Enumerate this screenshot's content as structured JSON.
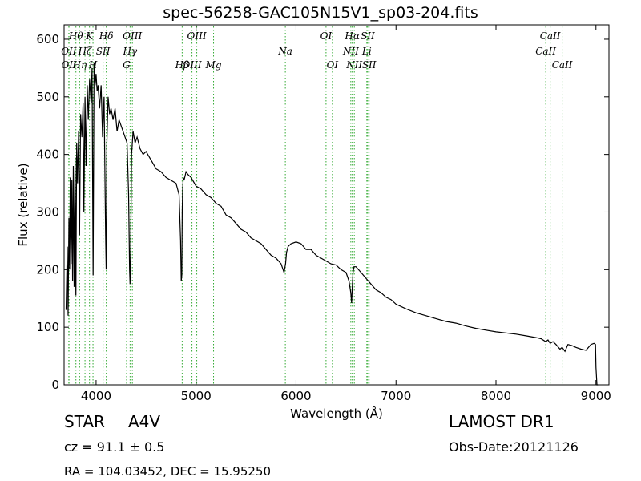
{
  "chart_data": {
    "type": "line",
    "title": "spec-56258-GAC105N15V1_sp03-204.fits",
    "xlabel": "Wavelength (Å)",
    "ylabel": "Flux (relative)",
    "xlim": [
      3680,
      9130
    ],
    "ylim": [
      0,
      625
    ],
    "xticks": [
      "4000",
      "5000",
      "6000",
      "7000",
      "8000",
      "9000"
    ],
    "yticks": [
      "0",
      "100",
      "200",
      "300",
      "400",
      "500",
      "600"
    ],
    "grid": false,
    "series": [
      {
        "x": [
          3700,
          3712,
          3720,
          3728,
          3735,
          3742,
          3750,
          3758,
          3765,
          3772,
          3780,
          3790,
          3798,
          3806,
          3815,
          3825,
          3835,
          3845,
          3858,
          3870,
          3878,
          3889,
          3900,
          3912,
          3922,
          3935,
          3950,
          3960,
          3970,
          3980,
          3990,
          4000,
          4010,
          4020,
          4035,
          4050,
          4065,
          4080,
          4095,
          4101,
          4108,
          4120,
          4135,
          4150,
          4170,
          4190,
          4210,
          4230,
          4250,
          4270,
          4290,
          4310,
          4325,
          4335,
          4340,
          4346,
          4355,
          4370,
          4390,
          4410,
          4440,
          4470,
          4500,
          4550,
          4600,
          4650,
          4700,
          4750,
          4800,
          4830,
          4845,
          4852,
          4857,
          4861,
          4866,
          4872,
          4880,
          4900,
          4920,
          4950,
          5000,
          5050,
          5100,
          5150,
          5200,
          5250,
          5300,
          5350,
          5400,
          5450,
          5500,
          5550,
          5600,
          5650,
          5700,
          5750,
          5800,
          5850,
          5880,
          5895,
          5905,
          5920,
          5950,
          6000,
          6050,
          6100,
          6150,
          6200,
          6250,
          6300,
          6350,
          6400,
          6450,
          6500,
          6530,
          6548,
          6556,
          6563,
          6570,
          6580,
          6600,
          6650,
          6700,
          6750,
          6800,
          6850,
          6900,
          6950,
          7000,
          7100,
          7200,
          7300,
          7400,
          7500,
          7600,
          7700,
          7800,
          7900,
          8000,
          8100,
          8200,
          8300,
          8400,
          8450,
          8498,
          8520,
          8542,
          8570,
          8600,
          8640,
          8662,
          8690,
          8720,
          8760,
          8800,
          8850,
          8900,
          8950,
          8980,
          8995,
          9000,
          9010,
          9020
        ],
        "y": [
          130,
          240,
          120,
          290,
          200,
          360,
          210,
          355,
          180,
          380,
          170,
          395,
          155,
          420,
          350,
          440,
          260,
          470,
          430,
          490,
          300,
          500,
          380,
          520,
          460,
          530,
          490,
          550,
          190,
          560,
          520,
          540,
          510,
          520,
          480,
          520,
          430,
          500,
          260,
          200,
          420,
          500,
          470,
          480,
          460,
          480,
          440,
          460,
          450,
          440,
          430,
          420,
          330,
          200,
          175,
          240,
          400,
          440,
          420,
          430,
          410,
          400,
          405,
          390,
          375,
          370,
          360,
          355,
          350,
          330,
          250,
          180,
          190,
          300,
          340,
          360,
          355,
          370,
          365,
          360,
          345,
          340,
          330,
          325,
          315,
          310,
          295,
          290,
          280,
          270,
          265,
          255,
          250,
          245,
          235,
          225,
          220,
          210,
          195,
          210,
          230,
          240,
          245,
          248,
          245,
          235,
          235,
          225,
          220,
          215,
          210,
          208,
          200,
          195,
          180,
          160,
          142,
          170,
          195,
          205,
          205,
          195,
          185,
          175,
          165,
          160,
          152,
          148,
          140,
          132,
          125,
          120,
          115,
          110,
          107,
          102,
          98,
          95,
          92,
          90,
          88,
          85,
          82,
          80,
          75,
          78,
          72,
          75,
          70,
          62,
          65,
          58,
          70,
          68,
          65,
          62,
          60,
          70,
          72,
          70,
          30,
          0,
          0
        ]
      }
    ],
    "emission_lines": [
      {
        "label": "OII",
        "x": 3727,
        "row": 2
      },
      {
        "label": "OII",
        "x": 3729,
        "row": 3
      },
      {
        "label": "Hθ",
        "x": 3798,
        "row": 1
      },
      {
        "label": "Hη",
        "x": 3835,
        "row": 3
      },
      {
        "label": "Hζ",
        "x": 3889,
        "row": 2
      },
      {
        "label": "K",
        "x": 3934,
        "row": 1
      },
      {
        "label": "H",
        "x": 3969,
        "row": 3
      },
      {
        "label": "SII",
        "x": 4070,
        "row": 2
      },
      {
        "label": "Hδ",
        "x": 4102,
        "row": 1
      },
      {
        "label": "OIII",
        "x": 4363,
        "row": 1
      },
      {
        "label": "Hγ",
        "x": 4340,
        "row": 2
      },
      {
        "label": "G",
        "x": 4305,
        "row": 3
      },
      {
        "label": "Hβ",
        "x": 4861,
        "row": 3
      },
      {
        "label": "OIII",
        "x": 4959,
        "row": 3
      },
      {
        "label": "OIII",
        "x": 5007,
        "row": 1
      },
      {
        "label": "Mg",
        "x": 5175,
        "row": 3
      },
      {
        "label": "Na",
        "x": 5893,
        "row": 2
      },
      {
        "label": "OI",
        "x": 6300,
        "row": 1
      },
      {
        "label": "OI",
        "x": 6364,
        "row": 3
      },
      {
        "label": "NII",
        "x": 6548,
        "row": 2
      },
      {
        "label": "NII",
        "x": 6583,
        "row": 3
      },
      {
        "label": "Hα",
        "x": 6563,
        "row": 1
      },
      {
        "label": "Li",
        "x": 6708,
        "row": 2
      },
      {
        "label": "SII",
        "x": 6717,
        "row": 1
      },
      {
        "label": "SII",
        "x": 6731,
        "row": 3
      },
      {
        "label": "CaII",
        "x": 8498,
        "row": 2
      },
      {
        "label": "CaII",
        "x": 8542,
        "row": 1
      },
      {
        "label": "CaII",
        "x": 8662,
        "row": 3
      }
    ],
    "colors": {
      "spectrum": "#000000",
      "lines": "#33aa33"
    }
  },
  "info": {
    "class": "STAR",
    "subclass": "A4V",
    "cz": "cz = 91.1  ± 0.5",
    "radec": "RA = 104.03452, DEC = 15.95250",
    "survey": "LAMOST DR1",
    "obsdate": "Obs-Date:20121126"
  }
}
